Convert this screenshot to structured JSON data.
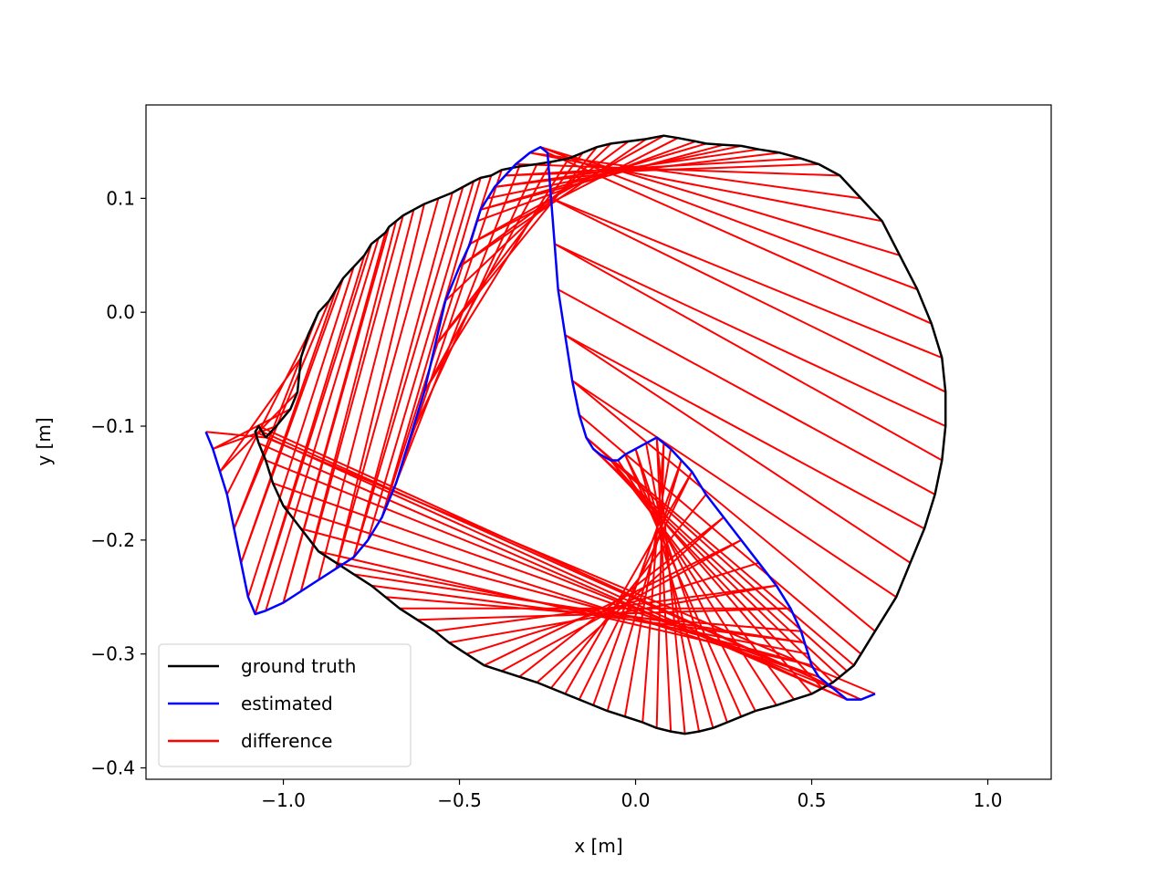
{
  "chart_data": {
    "type": "line",
    "title": "",
    "xlabel": "x [m]",
    "ylabel": "y [m]",
    "xlim": [
      -1.39,
      1.18
    ],
    "ylim": [
      -0.41,
      0.182
    ],
    "xticks": [
      -1.0,
      -0.5,
      0.0,
      0.5,
      1.0
    ],
    "xtick_labels": [
      "−1.0",
      "−0.5",
      "0.0",
      "0.5",
      "1.0"
    ],
    "yticks": [
      0.1,
      0.0,
      -0.1,
      -0.2,
      -0.3,
      -0.4
    ],
    "ytick_labels": [
      "0.1",
      "0.0",
      "−0.1",
      "−0.2",
      "−0.3",
      "−0.4"
    ],
    "grid": false,
    "legend_position": "lower-left",
    "series": [
      {
        "name": "ground truth",
        "color": "#000000",
        "x": [
          -1.05,
          -1.02,
          -0.98,
          -0.96,
          -0.95,
          -0.93,
          -0.9,
          -0.87,
          -0.85,
          -0.83,
          -0.8,
          -0.77,
          -0.75,
          -0.73,
          -0.71,
          -0.7,
          -0.68,
          -0.66,
          -0.63,
          -0.6,
          -0.56,
          -0.52,
          -0.49,
          -0.46,
          -0.44,
          -0.41,
          -0.38,
          -0.33,
          -0.28,
          -0.24,
          -0.19,
          -0.15,
          -0.11,
          -0.07,
          -0.02,
          0.03,
          0.08,
          0.12,
          0.17,
          0.2,
          0.25,
          0.3,
          0.35,
          0.41,
          0.47,
          0.52,
          0.58,
          0.64,
          0.7,
          0.75,
          0.8,
          0.84,
          0.87,
          0.88,
          0.88,
          0.87,
          0.85,
          0.82,
          0.78,
          0.74,
          0.68,
          0.64,
          0.62,
          0.6,
          0.58,
          0.56,
          0.53,
          0.5,
          0.45,
          0.4,
          0.34,
          0.3,
          0.26,
          0.22,
          0.18,
          0.14,
          0.1,
          0.06,
          0.02,
          -0.03,
          -0.08,
          -0.12,
          -0.16,
          -0.2,
          -0.24,
          -0.28,
          -0.33,
          -0.38,
          -0.43,
          -0.48,
          -0.53,
          -0.57,
          -0.62,
          -0.67,
          -0.71,
          -0.75,
          -0.8,
          -0.85,
          -0.9,
          -0.95,
          -1.0,
          -1.03,
          -1.05,
          -1.07,
          -1.08,
          -1.07,
          -1.06,
          -1.05
        ],
        "y": [
          -0.11,
          -0.1,
          -0.085,
          -0.07,
          -0.04,
          -0.02,
          0.0,
          0.01,
          0.02,
          0.03,
          0.04,
          0.05,
          0.06,
          0.065,
          0.07,
          0.075,
          0.08,
          0.085,
          0.09,
          0.095,
          0.1,
          0.105,
          0.11,
          0.115,
          0.118,
          0.12,
          0.125,
          0.128,
          0.13,
          0.132,
          0.135,
          0.14,
          0.145,
          0.148,
          0.15,
          0.152,
          0.155,
          0.153,
          0.15,
          0.148,
          0.147,
          0.146,
          0.143,
          0.14,
          0.135,
          0.13,
          0.12,
          0.1,
          0.08,
          0.05,
          0.02,
          -0.01,
          -0.04,
          -0.07,
          -0.1,
          -0.13,
          -0.16,
          -0.19,
          -0.22,
          -0.25,
          -0.28,
          -0.3,
          -0.31,
          -0.315,
          -0.32,
          -0.325,
          -0.33,
          -0.335,
          -0.34,
          -0.345,
          -0.35,
          -0.355,
          -0.36,
          -0.365,
          -0.368,
          -0.37,
          -0.368,
          -0.365,
          -0.36,
          -0.355,
          -0.35,
          -0.345,
          -0.34,
          -0.335,
          -0.33,
          -0.325,
          -0.32,
          -0.315,
          -0.31,
          -0.3,
          -0.29,
          -0.28,
          -0.27,
          -0.26,
          -0.25,
          -0.24,
          -0.23,
          -0.22,
          -0.21,
          -0.19,
          -0.17,
          -0.15,
          -0.13,
          -0.115,
          -0.105,
          -0.1,
          -0.105,
          -0.11
        ]
      },
      {
        "name": "estimated",
        "color": "#0000ff",
        "x": [
          -1.22,
          -1.2,
          -1.18,
          -1.16,
          -1.14,
          -1.12,
          -1.1,
          -1.08,
          -1.05,
          -1.0,
          -0.95,
          -0.9,
          -0.85,
          -0.8,
          -0.76,
          -0.72,
          -0.68,
          -0.64,
          -0.6,
          -0.57,
          -0.54,
          -0.5,
          -0.47,
          -0.45,
          -0.44,
          -0.42,
          -0.4,
          -0.37,
          -0.34,
          -0.3,
          -0.27,
          -0.25,
          -0.24,
          -0.23,
          -0.22,
          -0.2,
          -0.18,
          -0.16,
          -0.14,
          -0.12,
          -0.1,
          -0.07,
          -0.05,
          -0.03,
          0.0,
          0.03,
          0.06,
          0.08,
          0.1,
          0.13,
          0.16,
          0.2,
          0.25,
          0.3,
          0.35,
          0.4,
          0.44,
          0.47,
          0.48,
          0.49,
          0.5,
          0.52,
          0.56,
          0.6,
          0.64,
          0.68
        ],
        "y": [
          -0.105,
          -0.12,
          -0.14,
          -0.16,
          -0.19,
          -0.22,
          -0.25,
          -0.265,
          -0.262,
          -0.255,
          -0.245,
          -0.235,
          -0.225,
          -0.215,
          -0.2,
          -0.18,
          -0.15,
          -0.11,
          -0.07,
          -0.03,
          0.01,
          0.04,
          0.06,
          0.08,
          0.09,
          0.1,
          0.11,
          0.12,
          0.13,
          0.14,
          0.145,
          0.14,
          0.1,
          0.06,
          0.02,
          -0.02,
          -0.06,
          -0.09,
          -0.11,
          -0.12,
          -0.125,
          -0.13,
          -0.13,
          -0.125,
          -0.12,
          -0.115,
          -0.11,
          -0.115,
          -0.12,
          -0.13,
          -0.14,
          -0.16,
          -0.18,
          -0.2,
          -0.22,
          -0.24,
          -0.26,
          -0.28,
          -0.29,
          -0.3,
          -0.31,
          -0.32,
          -0.33,
          -0.34,
          -0.34,
          -0.335
        ]
      },
      {
        "name": "difference",
        "color": "#ff0000",
        "x": [],
        "y": []
      }
    ]
  }
}
